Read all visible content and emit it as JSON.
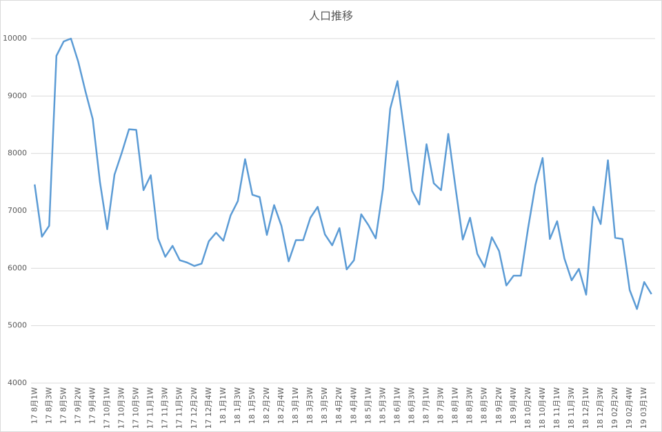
{
  "chart_data": {
    "type": "line",
    "title": "人口推移",
    "categories": [
      "17 8月1W",
      null,
      "17 8月3W",
      null,
      "17 8月5W",
      null,
      "17 9月2W",
      null,
      "17 9月4W",
      null,
      "17 10月1W",
      null,
      "17 10月3W",
      null,
      "17 10月5W",
      null,
      "17 11月1W",
      null,
      "17 11月3W",
      null,
      "17 11月5W",
      null,
      "17 12月2W",
      null,
      "17 12月4W",
      null,
      "18 1月1W",
      null,
      "18 1月3W",
      null,
      "18 1月5W",
      null,
      "18 2月2W",
      null,
      "18 2月4W",
      null,
      "18 3月1W",
      null,
      "18 3月3W",
      null,
      "18 3月5W",
      null,
      "18 4月2W",
      null,
      "18 4月4W",
      null,
      "18 5月1W",
      null,
      "18 5月3W",
      null,
      "18 6月1W",
      null,
      "18 6月3W",
      null,
      "18 7月1W",
      null,
      "18 7月3W",
      null,
      "18 8月1W",
      null,
      "18 8月3W",
      null,
      "18 8月5W",
      null,
      "18 9月2W",
      null,
      "18 9月4W",
      null,
      "18 10月2W",
      null,
      "18 10月4W",
      null,
      "18 11月1W",
      null,
      "18 11月3W",
      null,
      "18 12月1W",
      null,
      "18 12月3W",
      null,
      "19 02月2W",
      null,
      "19 02月4W",
      null,
      "19 03月1W",
      null
    ],
    "series": [
      {
        "name": "人口",
        "color": "#5b9bd5",
        "values": [
          7460,
          6550,
          6740,
          9700,
          9950,
          10000,
          9600,
          9080,
          8600,
          7500,
          6680,
          7630,
          8010,
          8420,
          8410,
          7360,
          7620,
          6520,
          6200,
          6390,
          6140,
          6100,
          6040,
          6080,
          6470,
          6620,
          6480,
          6920,
          7170,
          7900,
          7280,
          7240,
          6580,
          7100,
          6740,
          6120,
          6490,
          6490,
          6880,
          7070,
          6590,
          6400,
          6700,
          5980,
          6140,
          6940,
          6750,
          6520,
          7380,
          8780,
          9260,
          8320,
          7350,
          7110,
          8160,
          7480,
          7360,
          8340,
          7400,
          6500,
          6880,
          6250,
          6020,
          6540,
          6300,
          5700,
          5870,
          5870,
          6700,
          7450,
          7920,
          6510,
          6820,
          6170,
          5790,
          5990,
          5540,
          7070,
          6770,
          7880,
          6530,
          6510,
          5620,
          5290,
          5760,
          5550
        ]
      }
    ],
    "ylim": [
      4000,
      10000
    ],
    "yticks": [
      4000,
      5000,
      6000,
      7000,
      8000,
      9000,
      10000
    ],
    "grid": true
  }
}
